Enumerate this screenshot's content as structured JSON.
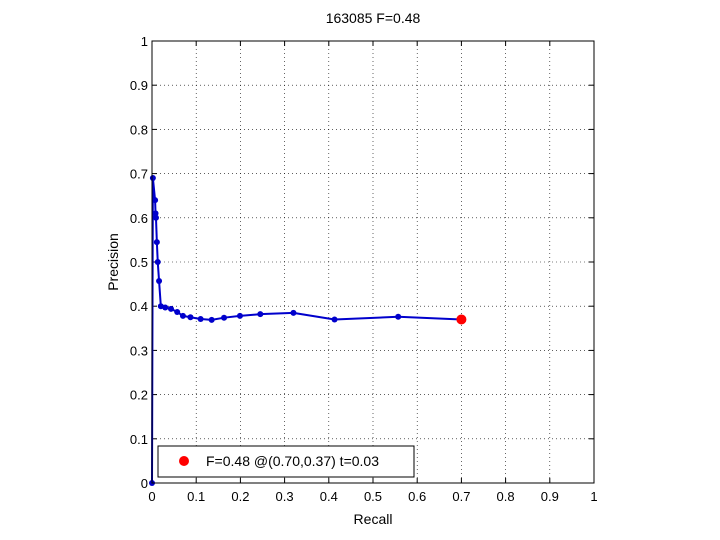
{
  "chart_data": {
    "type": "line",
    "title": "163085 F=0.48",
    "xlabel": "Recall",
    "ylabel": "Precision",
    "xlim": [
      0,
      1
    ],
    "ylim": [
      0,
      1
    ],
    "grid": true,
    "x_ticks": [
      "0",
      "0.1",
      "0.2",
      "0.3",
      "0.4",
      "0.5",
      "0.6",
      "0.7",
      "0.8",
      "0.9",
      "1"
    ],
    "y_ticks": [
      "0",
      "0.1",
      "0.2",
      "0.3",
      "0.4",
      "0.5",
      "0.6",
      "0.7",
      "0.8",
      "0.9",
      "1"
    ],
    "series": [
      {
        "color": "#0000cc",
        "points": [
          [
            0.0,
            0.0
          ],
          [
            0.002,
            0.69
          ],
          [
            0.007,
            0.64
          ],
          [
            0.008,
            0.61
          ],
          [
            0.009,
            0.6
          ],
          [
            0.011,
            0.545
          ],
          [
            0.013,
            0.5
          ],
          [
            0.016,
            0.457
          ],
          [
            0.02,
            0.4
          ],
          [
            0.03,
            0.397
          ],
          [
            0.043,
            0.394
          ],
          [
            0.057,
            0.387
          ],
          [
            0.07,
            0.378
          ],
          [
            0.087,
            0.375
          ],
          [
            0.11,
            0.371
          ],
          [
            0.135,
            0.369
          ],
          [
            0.163,
            0.374
          ],
          [
            0.199,
            0.378
          ],
          [
            0.245,
            0.382
          ],
          [
            0.32,
            0.385
          ],
          [
            0.413,
            0.37
          ],
          [
            0.557,
            0.376
          ],
          [
            0.7,
            0.37
          ]
        ]
      }
    ],
    "highlight_point": {
      "x": 0.7,
      "y": 0.37,
      "color": "#ff0000"
    },
    "legend": {
      "position": "bottom-left",
      "entries": [
        "F=0.48 @(0.70,0.37) t=0.03"
      ]
    }
  }
}
